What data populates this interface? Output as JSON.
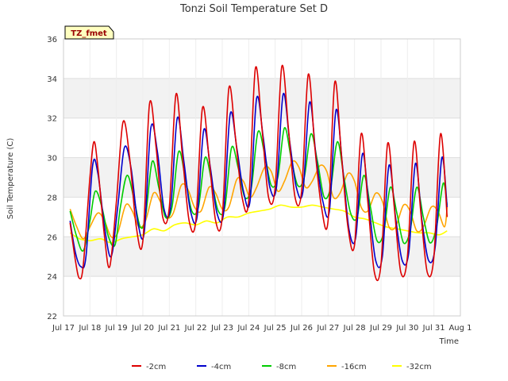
{
  "chart_data": {
    "type": "line",
    "title": "Tonzi Soil Temperature Set D",
    "xlabel": "Time",
    "ylabel": "Soil Temperature (C)",
    "ylim": [
      22,
      36
    ],
    "yticks": [
      22,
      24,
      26,
      28,
      30,
      32,
      34,
      36
    ],
    "xlim": [
      17,
      32
    ],
    "xticks": [
      17,
      18,
      19,
      20,
      21,
      22,
      23,
      24,
      25,
      26,
      27,
      28,
      29,
      30,
      31,
      32
    ],
    "xtick_labels": [
      "Jul 17",
      "Jul 18",
      "Jul 19",
      "Jul 20",
      "Jul 21",
      "Jul 22",
      "Jul 23",
      "Jul 24",
      "Jul 25",
      "Jul 26",
      "Jul 27",
      "Jul 28",
      "Jul 29",
      "Jul 30",
      "Jul 31",
      "Aug 1"
    ],
    "grid": true,
    "legend_position": "bottom",
    "annotation": "TZ_fmet",
    "series": [
      {
        "name": "-2cm",
        "color": "#dd0000",
        "x": [
          17.25,
          17.45,
          17.6,
          17.75,
          18.0,
          18.15,
          18.3,
          18.55,
          18.75,
          19.0,
          19.25,
          19.5,
          19.75,
          20.0,
          20.25,
          20.5,
          20.75,
          21.0,
          21.25,
          21.5,
          21.75,
          22.0,
          22.25,
          22.5,
          22.75,
          23.0,
          23.25,
          23.5,
          23.75,
          24.0,
          24.25,
          24.5,
          24.75,
          25.0,
          25.25,
          25.5,
          25.75,
          26.0,
          26.25,
          26.5,
          26.75,
          27.0,
          27.25,
          27.5,
          27.75,
          28.0,
          28.25,
          28.5,
          28.75,
          29.0,
          29.25,
          29.5,
          29.75,
          30.0,
          30.25,
          30.5,
          30.75,
          31.0,
          31.25,
          31.5
        ],
        "y": [
          26.7,
          24.8,
          23.9,
          24.6,
          29.0,
          30.8,
          29.5,
          26.0,
          24.5,
          27.8,
          31.8,
          30.0,
          26.5,
          25.8,
          32.7,
          30.5,
          27.0,
          27.5,
          33.2,
          30.0,
          26.8,
          26.8,
          32.5,
          30.0,
          26.8,
          27.0,
          33.5,
          31.0,
          28.0,
          27.8,
          34.5,
          31.5,
          28.0,
          28.5,
          34.6,
          31.5,
          28.0,
          28.3,
          34.2,
          30.5,
          27.5,
          26.8,
          33.8,
          30.2,
          26.5,
          25.6,
          31.2,
          27.8,
          24.2,
          24.6,
          30.7,
          27.5,
          24.2,
          25.0,
          30.8,
          27.3,
          24.2,
          25.0,
          31.2,
          27.0
        ]
      },
      {
        "name": "-4cm",
        "color": "#0000cc",
        "x": [
          17.25,
          17.45,
          17.65,
          17.85,
          18.1,
          18.3,
          18.55,
          18.8,
          19.05,
          19.3,
          19.55,
          19.8,
          20.05,
          20.3,
          20.55,
          20.8,
          21.05,
          21.3,
          21.55,
          21.8,
          22.05,
          22.3,
          22.55,
          22.8,
          23.05,
          23.3,
          23.55,
          23.8,
          24.05,
          24.3,
          24.55,
          24.8,
          25.05,
          25.3,
          25.55,
          25.8,
          26.05,
          26.3,
          26.55,
          26.8,
          27.05,
          27.3,
          27.55,
          27.8,
          28.05,
          28.3,
          28.55,
          28.8,
          29.05,
          29.3,
          29.55,
          29.8,
          30.05,
          30.3,
          30.55,
          30.8,
          31.05,
          31.3,
          31.5
        ],
        "y": [
          26.8,
          25.2,
          24.5,
          25.0,
          29.6,
          29.2,
          26.5,
          25.0,
          27.5,
          30.5,
          29.5,
          26.8,
          26.2,
          31.5,
          30.3,
          27.4,
          27.5,
          32.0,
          29.8,
          27.3,
          27.0,
          31.4,
          29.5,
          27.2,
          27.2,
          32.2,
          30.5,
          28.3,
          27.8,
          33.0,
          31.0,
          28.5,
          28.5,
          33.2,
          30.8,
          28.5,
          28.3,
          32.8,
          30.0,
          27.8,
          27.3,
          32.4,
          29.5,
          26.3,
          26.0,
          30.2,
          27.5,
          24.8,
          25.0,
          29.6,
          27.0,
          24.8,
          25.2,
          29.7,
          26.8,
          24.8,
          25.5,
          30.0,
          27.5
        ]
      },
      {
        "name": "-8cm",
        "color": "#00cc00",
        "x": [
          17.25,
          17.5,
          17.75,
          18.0,
          18.2,
          18.45,
          18.7,
          18.95,
          19.15,
          19.4,
          19.65,
          19.9,
          20.1,
          20.35,
          20.6,
          20.85,
          21.1,
          21.35,
          21.6,
          21.85,
          22.1,
          22.35,
          22.6,
          22.85,
          23.1,
          23.35,
          23.6,
          23.85,
          24.1,
          24.35,
          24.6,
          24.85,
          25.1,
          25.35,
          25.6,
          25.85,
          26.1,
          26.35,
          26.6,
          26.85,
          27.1,
          27.35,
          27.6,
          27.85,
          28.1,
          28.35,
          28.6,
          28.85,
          29.1,
          29.35,
          29.6,
          29.85,
          30.1,
          30.35,
          30.6,
          30.85,
          31.1,
          31.35,
          31.5
        ],
        "y": [
          27.3,
          26.0,
          25.3,
          26.8,
          28.3,
          27.5,
          26.0,
          25.6,
          27.5,
          29.1,
          28.0,
          26.5,
          27.0,
          29.8,
          28.5,
          27.0,
          27.5,
          30.3,
          29.0,
          27.3,
          27.5,
          30.0,
          28.8,
          27.3,
          27.5,
          30.5,
          29.5,
          28.0,
          28.5,
          31.3,
          30.2,
          28.6,
          29.0,
          31.5,
          30.0,
          28.6,
          29.0,
          31.2,
          29.8,
          28.0,
          28.5,
          30.8,
          29.0,
          27.2,
          27.0,
          29.1,
          27.5,
          25.8,
          26.2,
          28.5,
          27.2,
          25.7,
          26.3,
          28.5,
          27.0,
          25.7,
          26.5,
          28.7,
          27.6
        ]
      },
      {
        "name": "-16cm",
        "color": "#ffa500",
        "x": [
          17.25,
          17.5,
          17.75,
          18.0,
          18.3,
          18.55,
          18.8,
          19.05,
          19.35,
          19.6,
          19.85,
          20.1,
          20.4,
          20.65,
          20.9,
          21.15,
          21.45,
          21.7,
          21.95,
          22.2,
          22.5,
          22.75,
          23.0,
          23.25,
          23.55,
          23.8,
          24.05,
          24.3,
          24.6,
          24.85,
          25.1,
          25.35,
          25.65,
          25.9,
          26.15,
          26.4,
          26.7,
          26.95,
          27.2,
          27.45,
          27.75,
          28.0,
          28.25,
          28.5,
          28.8,
          29.05,
          29.3,
          29.55,
          29.85,
          30.1,
          30.35,
          30.6,
          30.9,
          31.15,
          31.4,
          31.5
        ],
        "y": [
          27.4,
          26.5,
          25.9,
          26.5,
          27.2,
          26.8,
          26.0,
          26.2,
          27.6,
          27.3,
          26.5,
          26.8,
          28.2,
          27.8,
          27.0,
          27.2,
          28.6,
          28.4,
          27.5,
          27.3,
          28.5,
          28.2,
          27.4,
          27.5,
          28.9,
          28.8,
          28.0,
          28.5,
          29.5,
          29.3,
          28.3,
          28.8,
          29.8,
          29.5,
          28.5,
          28.8,
          29.6,
          29.3,
          28.0,
          28.2,
          29.2,
          28.8,
          27.5,
          27.3,
          28.2,
          27.8,
          26.5,
          26.5,
          27.6,
          27.3,
          26.3,
          26.5,
          27.5,
          27.3,
          26.5,
          27.5
        ]
      },
      {
        "name": "-32cm",
        "color": "#ffff00",
        "x": [
          17.25,
          17.6,
          18.0,
          18.4,
          18.8,
          19.2,
          19.6,
          20.0,
          20.4,
          20.8,
          21.2,
          21.6,
          22.0,
          22.4,
          22.8,
          23.2,
          23.6,
          24.0,
          24.4,
          24.8,
          25.2,
          25.6,
          26.0,
          26.4,
          26.8,
          27.2,
          27.6,
          28.0,
          28.4,
          28.8,
          29.2,
          29.6,
          30.0,
          30.4,
          30.8,
          31.2,
          31.5
        ],
        "y": [
          26.2,
          25.9,
          25.8,
          25.9,
          25.7,
          25.9,
          26.0,
          26.1,
          26.4,
          26.3,
          26.6,
          26.7,
          26.6,
          26.8,
          26.7,
          27.0,
          27.0,
          27.2,
          27.3,
          27.4,
          27.6,
          27.5,
          27.5,
          27.6,
          27.5,
          27.4,
          27.3,
          27.0,
          26.9,
          26.7,
          26.5,
          26.4,
          26.3,
          26.2,
          26.2,
          26.1,
          26.3
        ]
      }
    ]
  }
}
